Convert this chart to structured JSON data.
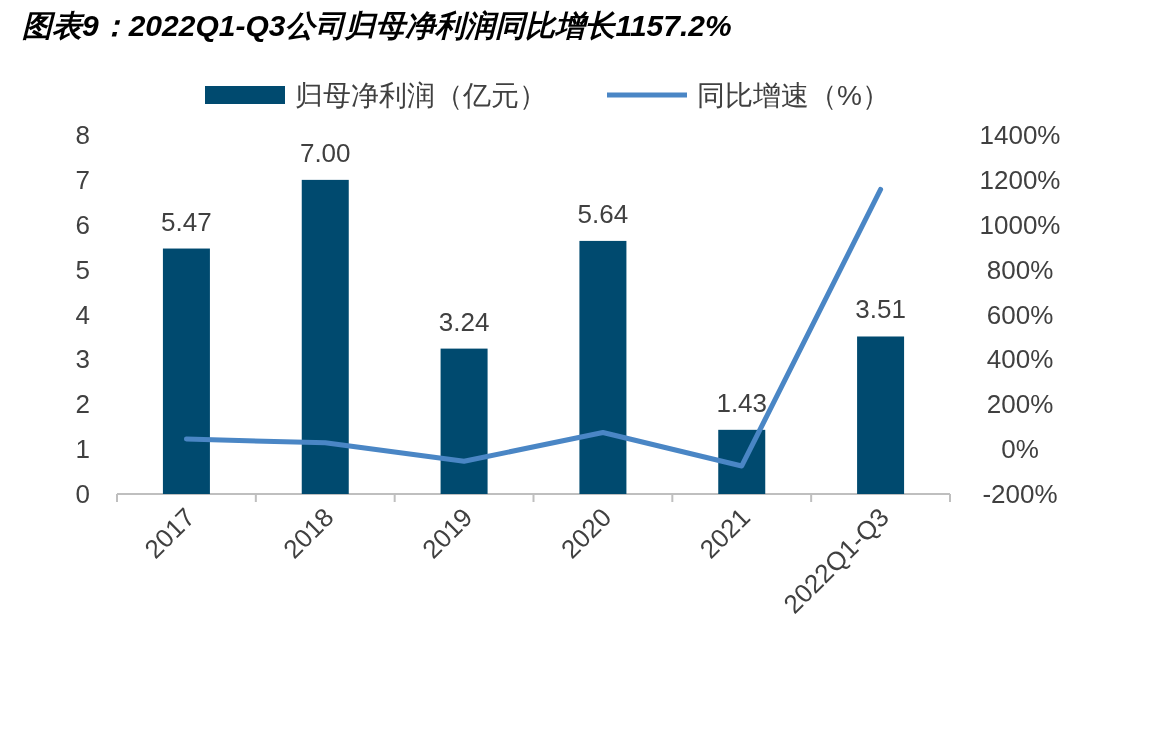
{
  "chart_data": {
    "type": "bar",
    "title": "图表9：2022Q1-Q3公司归母净利润同比增长1157.2%",
    "categories": [
      "2017",
      "2018",
      "2019",
      "2020",
      "2021",
      "2022Q1-Q3"
    ],
    "series": [
      {
        "name": "归母净利润（亿元）",
        "color": "#004a6f",
        "values": [
          5.47,
          7.0,
          3.24,
          5.64,
          1.43,
          3.51
        ],
        "value_labels": [
          "5.47",
          "7.00",
          "3.24",
          "5.64",
          "1.43",
          "3.51"
        ]
      },
      {
        "name": "同比增速（%）",
        "type": "line",
        "axis": "y2",
        "color": "#4a86c5",
        "values": [
          45,
          28,
          -54,
          74,
          -75,
          1157.2
        ]
      }
    ],
    "ylim": [
      0,
      8
    ],
    "yticks": [
      0,
      1,
      2,
      3,
      4,
      5,
      6,
      7,
      8
    ],
    "y2lim": [
      -200,
      1400
    ],
    "y2ticks": [
      {
        "value": -200,
        "label": "-200%"
      },
      {
        "value": 0,
        "label": "0%"
      },
      {
        "value": 200,
        "label": "200%"
      },
      {
        "value": 400,
        "label": "400%"
      },
      {
        "value": 600,
        "label": "600%"
      },
      {
        "value": 800,
        "label": "800%"
      },
      {
        "value": 1000,
        "label": "1000%"
      },
      {
        "value": 1200,
        "label": "1200%"
      },
      {
        "value": 1400,
        "label": "1400%"
      }
    ],
    "legend": "top"
  }
}
